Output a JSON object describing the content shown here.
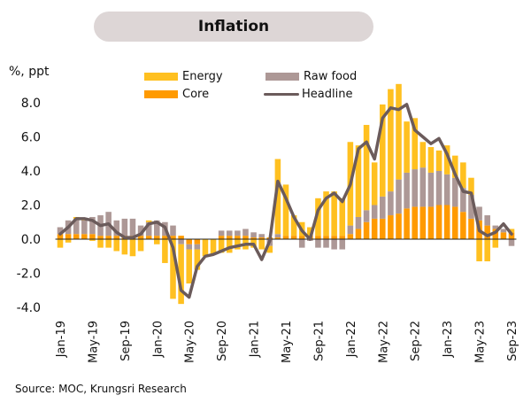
{
  "chart_data": {
    "type": "bar",
    "stacked": true,
    "title": "Inflation",
    "ylabel": "%, ppt",
    "xlabel": "",
    "ylim": [
      -4.0,
      8.0
    ],
    "yticks": [
      "8.0",
      "6.0",
      "4.0",
      "2.0",
      "0.0",
      "-2.0",
      "-4.0"
    ],
    "ytick_values": [
      8,
      6,
      4,
      2,
      0,
      -2,
      -4
    ],
    "grid": false,
    "legend_position": "top",
    "xtick_labels": [
      "Jan-19",
      "May-19",
      "Sep-19",
      "Jan-20",
      "May-20",
      "Sep-20",
      "Jan-21",
      "May-21",
      "Sep-21",
      "Jan-22",
      "May-22",
      "Sep-22",
      "Jan-23",
      "May-23",
      "Sep-23"
    ],
    "xtick_every": 4,
    "categories": [
      "Jan-19",
      "Feb-19",
      "Mar-19",
      "Apr-19",
      "May-19",
      "Jun-19",
      "Jul-19",
      "Aug-19",
      "Sep-19",
      "Oct-19",
      "Nov-19",
      "Dec-19",
      "Jan-20",
      "Feb-20",
      "Mar-20",
      "Apr-20",
      "May-20",
      "Jun-20",
      "Jul-20",
      "Aug-20",
      "Sep-20",
      "Oct-20",
      "Nov-20",
      "Dec-20",
      "Jan-21",
      "Feb-21",
      "Mar-21",
      "Apr-21",
      "May-21",
      "Jun-21",
      "Jul-21",
      "Aug-21",
      "Sep-21",
      "Oct-21",
      "Nov-21",
      "Dec-21",
      "Jan-22",
      "Feb-22",
      "Mar-22",
      "Apr-22",
      "May-22",
      "Jun-22",
      "Jul-22",
      "Aug-22",
      "Sep-22",
      "Oct-22",
      "Nov-22",
      "Dec-22",
      "Jan-23",
      "Feb-23",
      "Mar-23",
      "Apr-23",
      "May-23",
      "Jun-23",
      "Jul-23",
      "Aug-23",
      "Sep-23"
    ],
    "series": [
      {
        "name": "Core",
        "color": "#ff9a00",
        "type": "bar",
        "values": [
          0.3,
          0.3,
          0.3,
          0.3,
          0.3,
          0.2,
          0.2,
          0.2,
          0.2,
          0.2,
          0.2,
          0.2,
          0.2,
          0.2,
          0.2,
          0.2,
          -0.3,
          -0.3,
          0.0,
          0.0,
          0.2,
          0.2,
          0.2,
          0.2,
          0.1,
          0.1,
          0.1,
          0.1,
          0.2,
          0.2,
          0.2,
          0.2,
          0.2,
          0.2,
          0.2,
          0.2,
          0.3,
          0.6,
          1.0,
          1.2,
          1.2,
          1.4,
          1.5,
          1.8,
          1.9,
          1.9,
          1.9,
          2.0,
          2.0,
          1.9,
          1.6,
          1.2,
          1.1,
          0.8,
          0.6,
          0.4,
          0.4
        ]
      },
      {
        "name": "Raw food",
        "color": "#ad9896",
        "type": "bar",
        "values": [
          0.4,
          0.8,
          0.9,
          0.8,
          1.0,
          1.2,
          1.4,
          0.9,
          1.0,
          1.0,
          0.6,
          0.8,
          0.9,
          0.8,
          0.6,
          -0.3,
          -0.3,
          -0.3,
          0.0,
          0.0,
          0.3,
          0.3,
          0.3,
          0.4,
          0.3,
          0.2,
          -0.4,
          0.2,
          0.0,
          0.0,
          -0.5,
          -0.1,
          -0.5,
          -0.5,
          -0.6,
          -0.6,
          0.5,
          0.7,
          0.7,
          0.8,
          1.3,
          1.4,
          2.0,
          2.1,
          2.2,
          2.3,
          2.0,
          2.0,
          1.8,
          1.7,
          1.4,
          1.4,
          0.8,
          0.6,
          0.2,
          0.2,
          -0.4
        ]
      },
      {
        "name": "Energy",
        "color": "#ffc020",
        "type": "bar",
        "values": [
          -0.5,
          -0.2,
          0.1,
          0.1,
          -0.1,
          -0.5,
          -0.5,
          -0.7,
          -0.9,
          -1.0,
          -0.7,
          0.1,
          -0.3,
          -1.4,
          -3.5,
          -3.5,
          -2.0,
          -1.2,
          -1.0,
          -0.9,
          -0.8,
          -0.8,
          -0.6,
          -0.6,
          -0.5,
          -0.6,
          -0.4,
          4.4,
          3.0,
          1.2,
          0.8,
          0.5,
          2.2,
          2.6,
          2.6,
          2.2,
          4.9,
          4.2,
          5.0,
          2.5,
          5.4,
          6.0,
          5.6,
          3.0,
          3.0,
          1.5,
          1.5,
          1.2,
          1.7,
          1.3,
          1.5,
          1.0,
          -1.3,
          -1.3,
          -0.5,
          0.0,
          0.2
        ]
      },
      {
        "name": "Headline",
        "color": "#6b5b5b",
        "type": "line",
        "values": [
          0.3,
          0.7,
          1.2,
          1.2,
          1.1,
          0.8,
          0.9,
          0.4,
          0.1,
          0.1,
          0.3,
          0.9,
          1.0,
          0.7,
          -0.5,
          -3.0,
          -3.4,
          -1.6,
          -1.0,
          -0.9,
          -0.7,
          -0.5,
          -0.4,
          -0.3,
          -0.3,
          -1.2,
          -0.1,
          3.4,
          2.4,
          1.3,
          0.5,
          0.0,
          1.7,
          2.4,
          2.7,
          2.2,
          3.2,
          5.3,
          5.7,
          4.7,
          7.1,
          7.7,
          7.6,
          7.9,
          6.4,
          6.0,
          5.6,
          5.9,
          5.0,
          3.8,
          2.8,
          2.7,
          0.5,
          0.2,
          0.4,
          0.9,
          0.3
        ]
      }
    ]
  },
  "title": "Inflation",
  "ylabel": "%, ppt",
  "legend": [
    {
      "label": "Energy",
      "color": "#ffc020",
      "kind": "bar"
    },
    {
      "label": "Raw food",
      "color": "#ad9896",
      "kind": "bar"
    },
    {
      "label": "Core",
      "color": "#ff9a00",
      "kind": "bar"
    },
    {
      "label": "Headline",
      "color": "#6b5b5b",
      "kind": "line"
    }
  ],
  "source": "Source: MOC, Krungsri Research",
  "colors": {
    "title_bg": "#ddd6d6",
    "axis": "#222222"
  }
}
